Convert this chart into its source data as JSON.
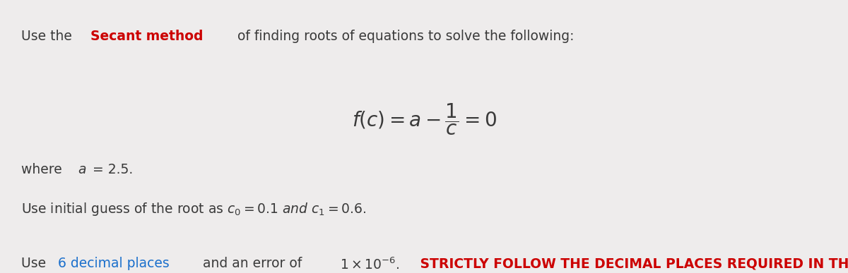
{
  "bg_color": "#eeecec",
  "text_color": "#3a3a3a",
  "red_color": "#cc0000",
  "blue_color": "#1a6fcc",
  "font_size_main": 13.5,
  "font_size_eq": 20,
  "line1_pieces": [
    {
      "text": "Use the ",
      "color": "#3a3a3a",
      "weight": "normal"
    },
    {
      "text": "Secant method",
      "color": "#cc0000",
      "weight": "bold"
    },
    {
      "text": " of finding roots of equations to solve the following:",
      "color": "#3a3a3a",
      "weight": "normal"
    }
  ],
  "line3": "where a = 2.5.",
  "line4": "Use initial guess of the root as c₀ = 0.1 and c₁ = 0.6.",
  "line5_pieces": [
    {
      "text": "Use ",
      "color": "#3a3a3a",
      "weight": "normal",
      "underline": false
    },
    {
      "text": "6 decimal places",
      "color": "#1a6fcc",
      "weight": "normal",
      "underline": true
    },
    {
      "text": " and an error of  ",
      "color": "#3a3a3a",
      "weight": "normal",
      "underline": false
    }
  ],
  "line5_exp": "1x10^{-6}. ",
  "line5_end": "STRICTLY FOLLOW THE DECIMAL PLACES REQUIRED IN THIS PROBLEM.",
  "line5_end_color": "#cc0000"
}
